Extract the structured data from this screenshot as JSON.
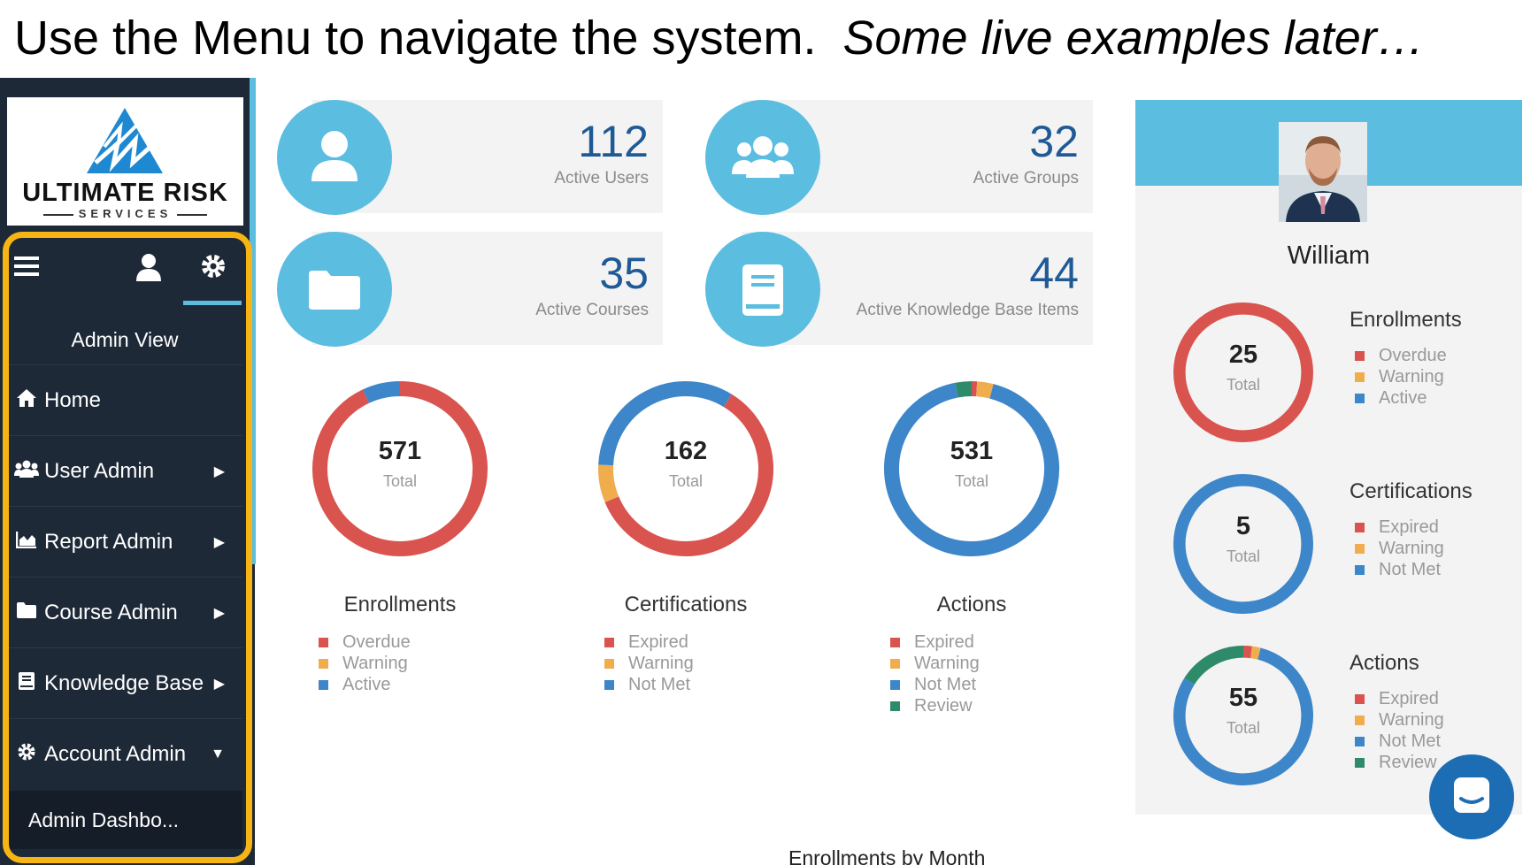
{
  "slide": {
    "title_plain": "Use the Menu to navigate the system.",
    "title_italic": "Some live examples later…"
  },
  "logo": {
    "name": "ULTIMATE RISK",
    "sub": "SERVICES"
  },
  "sidebar": {
    "header": "Admin View",
    "items": [
      {
        "label": "Home",
        "icon": "home-icon",
        "caret": ""
      },
      {
        "label": "User Admin",
        "icon": "users-icon",
        "caret": "▶"
      },
      {
        "label": "Report Admin",
        "icon": "chart-icon",
        "caret": "▶"
      },
      {
        "label": "Course Admin",
        "icon": "folder-icon",
        "caret": "▶"
      },
      {
        "label": "Knowledge Base",
        "icon": "book-icon",
        "caret": "▶"
      },
      {
        "label": "Account Admin",
        "icon": "gear-icon",
        "caret": "▼"
      }
    ],
    "subitem": "Admin Dashbo..."
  },
  "stats": [
    {
      "value": "112",
      "label": "Active Users",
      "icon": "user-icon"
    },
    {
      "value": "32",
      "label": "Active Groups",
      "icon": "group-icon"
    },
    {
      "value": "35",
      "label": "Active Courses",
      "icon": "folder-icon"
    },
    {
      "value": "44",
      "label": "Active Knowledge Base Items",
      "icon": "book-icon"
    }
  ],
  "colors": {
    "red": "#d9534f",
    "orange": "#f0ad4e",
    "blue": "#3d86c9",
    "green": "#2e8b6a",
    "accent": "#5bbde0",
    "highlight": "#f6b514"
  },
  "chart_data": [
    {
      "type": "pie",
      "title": "Enrollments",
      "center_value": "571",
      "center_label": "Total",
      "series": [
        {
          "name": "Overdue",
          "value": 0.93
        },
        {
          "name": "Warning",
          "value": 0.0
        },
        {
          "name": "Active",
          "value": 0.07
        }
      ]
    },
    {
      "type": "pie",
      "title": "Certifications",
      "center_value": "162",
      "center_label": "Total",
      "series": [
        {
          "name": "Expired",
          "value": 0.6
        },
        {
          "name": "Warning",
          "value": 0.07
        },
        {
          "name": "Not Met",
          "value": 0.33
        }
      ]
    },
    {
      "type": "pie",
      "title": "Actions",
      "center_value": "531",
      "center_label": "Total",
      "series": [
        {
          "name": "Expired",
          "value": 0.01
        },
        {
          "name": "Warning",
          "value": 0.03
        },
        {
          "name": "Not Met",
          "value": 0.93
        },
        {
          "name": "Review",
          "value": 0.03
        }
      ]
    }
  ],
  "profile": {
    "name": "William",
    "charts": [
      {
        "type": "pie",
        "title": "Enrollments",
        "center_value": "25",
        "center_label": "Total",
        "series": [
          {
            "name": "Overdue",
            "value": 1.0
          },
          {
            "name": "Warning",
            "value": 0.0
          },
          {
            "name": "Active",
            "value": 0.0
          }
        ]
      },
      {
        "type": "pie",
        "title": "Certifications",
        "center_value": "5",
        "center_label": "Total",
        "series": [
          {
            "name": "Expired",
            "value": 0.0
          },
          {
            "name": "Warning",
            "value": 0.0
          },
          {
            "name": "Not Met",
            "value": 1.0
          }
        ]
      },
      {
        "type": "pie",
        "title": "Actions",
        "center_value": "55",
        "center_label": "Total",
        "series": [
          {
            "name": "Expired",
            "value": 0.02
          },
          {
            "name": "Warning",
            "value": 0.02
          },
          {
            "name": "Not Met",
            "value": 0.8
          },
          {
            "name": "Review",
            "value": 0.16
          }
        ]
      }
    ]
  },
  "footer": {
    "caption": "Enrollments by Month"
  }
}
